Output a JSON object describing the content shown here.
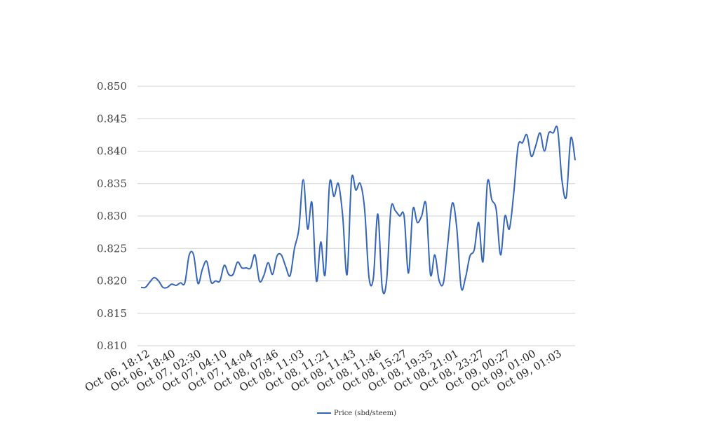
{
  "chart_data": {
    "type": "line",
    "title": "",
    "xlabel": "",
    "ylabel": "",
    "ylim": [
      0.81,
      0.85
    ],
    "yticks": [
      "0.850",
      "0.845",
      "0.840",
      "0.835",
      "0.830",
      "0.825",
      "0.820",
      "0.815",
      "0.810"
    ],
    "x_tick_labels": [
      "Oct 06, 18:12",
      "Oct 06, 18:40",
      "Oct 07, 02:30",
      "Oct 07, 04:10",
      "Oct 07, 14:04",
      "Oct 08, 07:46",
      "Oct 08, 11:03",
      "Oct 08, 11:21",
      "Oct 08, 11:43",
      "Oct 08, 11:46",
      "Oct 08, 15:27",
      "Oct 08, 19:35",
      "Oct 08, 21:01",
      "Oct 08, 23:27",
      "Oct 09, 00:27",
      "Oct 09, 01:00",
      "Oct 09, 01:03"
    ],
    "grid": true,
    "legend_position": "bottom",
    "line_color": "#3565b9",
    "series": [
      {
        "name": "Price (sbd/steem)",
        "values": [
          0.819,
          0.819,
          0.8198,
          0.8205,
          0.82,
          0.819,
          0.819,
          0.8195,
          0.8193,
          0.8197,
          0.8197,
          0.824,
          0.824,
          0.8196,
          0.8218,
          0.823,
          0.8198,
          0.82,
          0.82,
          0.8224,
          0.821,
          0.821,
          0.8229,
          0.822,
          0.822,
          0.822,
          0.824,
          0.82,
          0.8208,
          0.8228,
          0.821,
          0.8238,
          0.824,
          0.8222,
          0.8208,
          0.825,
          0.828,
          0.8356,
          0.828,
          0.832,
          0.82,
          0.826,
          0.821,
          0.835,
          0.833,
          0.835,
          0.83,
          0.821,
          0.8356,
          0.834,
          0.835,
          0.831,
          0.8205,
          0.8205,
          0.8303,
          0.819,
          0.82,
          0.8311,
          0.8308,
          0.83,
          0.83,
          0.8212,
          0.831,
          0.829,
          0.83,
          0.8318,
          0.821,
          0.824,
          0.82,
          0.8198,
          0.826,
          0.832,
          0.8282,
          0.819,
          0.8205,
          0.8238,
          0.8248,
          0.829,
          0.823,
          0.8352,
          0.8325,
          0.831,
          0.824,
          0.83,
          0.828,
          0.8335,
          0.8408,
          0.8413,
          0.8425,
          0.8392,
          0.8408,
          0.8428,
          0.84,
          0.8428,
          0.8428,
          0.8434,
          0.8355,
          0.833,
          0.842,
          0.8386
        ]
      }
    ]
  }
}
